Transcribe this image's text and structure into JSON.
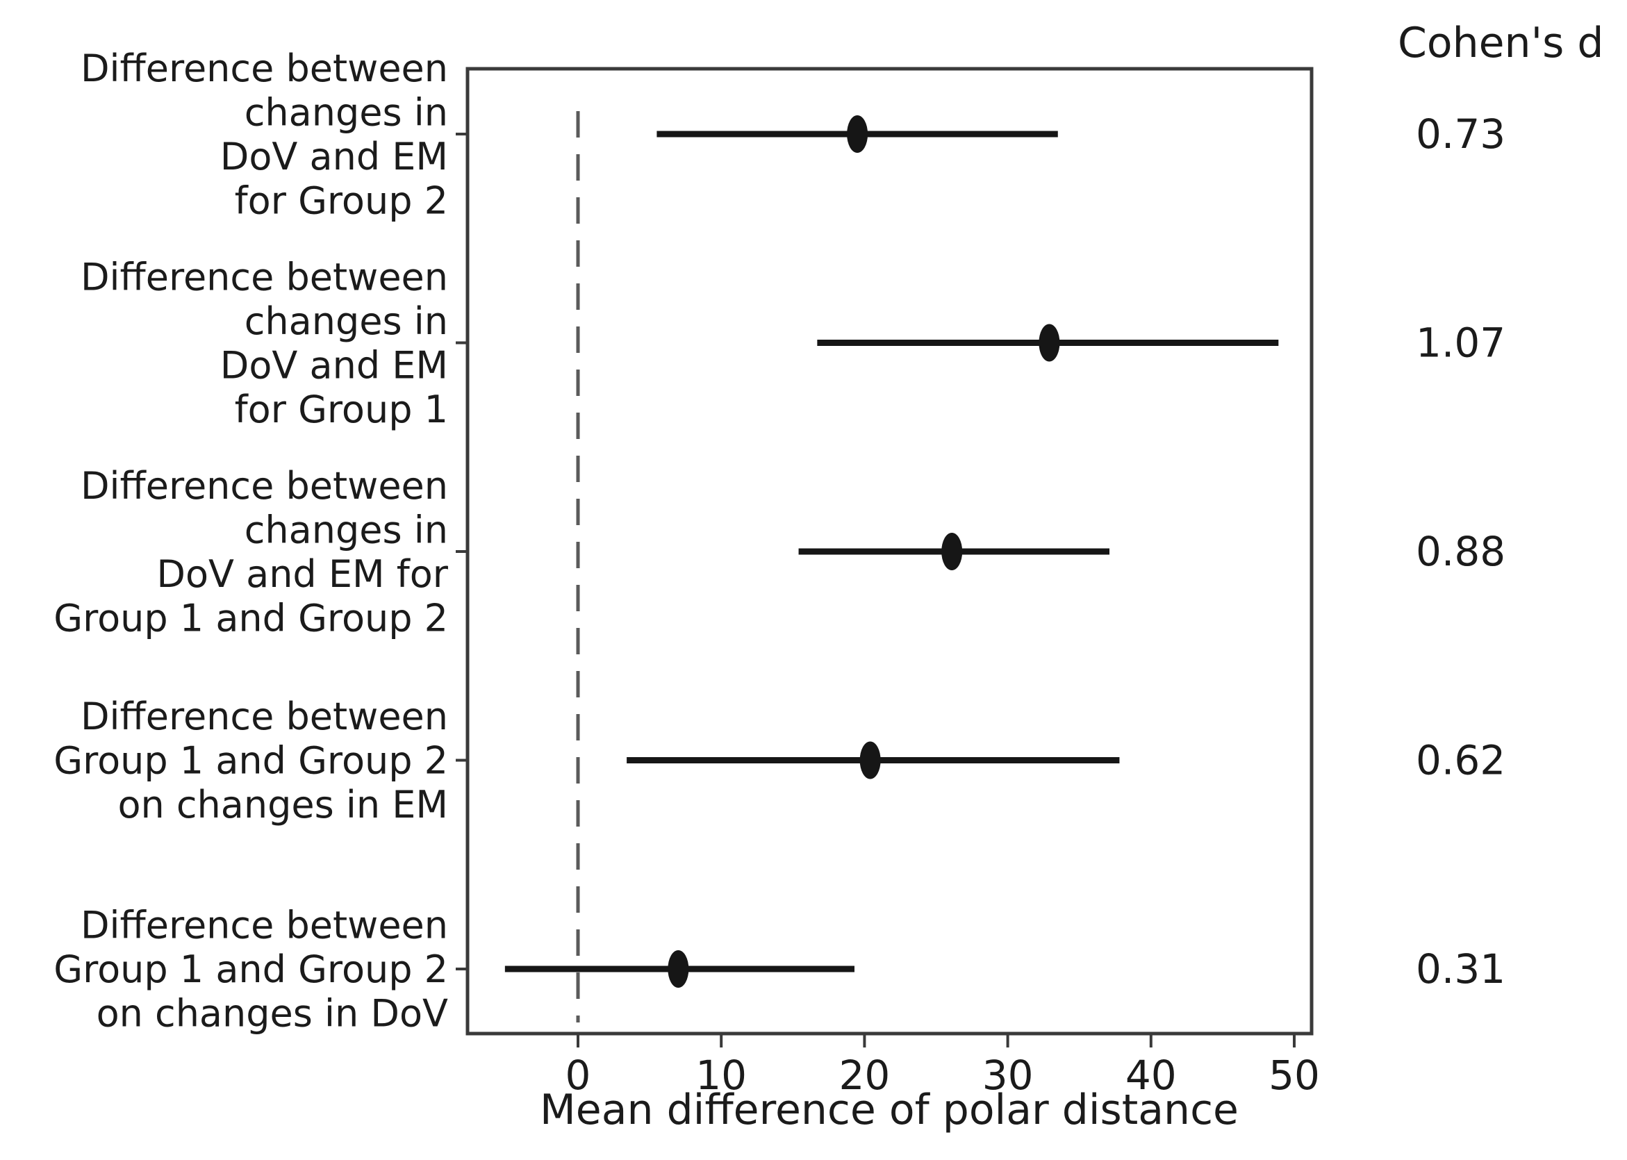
{
  "chart_data": {
    "type": "forest",
    "title": "",
    "xlabel": "Mean difference of polar distance",
    "value_column_header": "Cohen's d",
    "xticks": [
      0,
      10,
      20,
      30,
      40,
      50
    ],
    "xlim": [
      -7.7,
      50.9
    ],
    "grid": false,
    "legend": "none",
    "zero_line": {
      "x": 0,
      "style": "dashed"
    },
    "rows": [
      {
        "label_lines": [
          "Difference between",
          "changes in",
          "DoV and EM",
          "for Group 2"
        ],
        "mean": 19.5,
        "ci_low": 5.5,
        "ci_high": 33.5,
        "cohens_d": "0.73"
      },
      {
        "label_lines": [
          "Difference between",
          "changes in",
          "DoV and EM",
          "for Group 1"
        ],
        "mean": 32.9,
        "ci_low": 16.7,
        "ci_high": 48.9,
        "cohens_d": "1.07"
      },
      {
        "label_lines": [
          "Difference between",
          "changes in",
          "DoV and EM for",
          "Group 1 and Group 2"
        ],
        "mean": 26.1,
        "ci_low": 15.4,
        "ci_high": 37.1,
        "cohens_d": "0.88"
      },
      {
        "label_lines": [
          "Difference between",
          "Group 1 and Group 2",
          "on changes in EM"
        ],
        "mean": 20.4,
        "ci_low": 3.4,
        "ci_high": 37.8,
        "cohens_d": "0.62"
      },
      {
        "label_lines": [
          "Difference between",
          "Group 1 and Group 2",
          "on changes in DoV"
        ],
        "mean": 7.0,
        "ci_low": -5.1,
        "ci_high": 19.3,
        "cohens_d": "0.31"
      }
    ],
    "colors": {
      "data": "#161616",
      "spine": "#3a3a3a",
      "zero_line": "#5a5a5a",
      "text": "#1b1b1b",
      "background": "#ffffff"
    }
  }
}
